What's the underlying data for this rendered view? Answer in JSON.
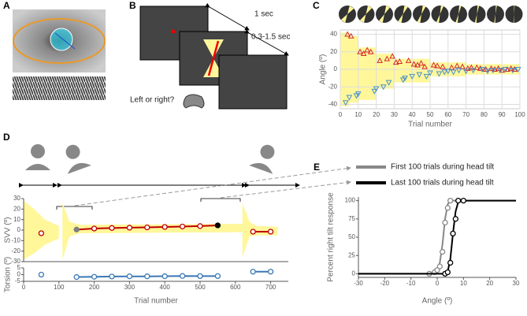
{
  "panel_labels": [
    "A",
    "B",
    "C",
    "D",
    "E"
  ],
  "task": {
    "durations": [
      "1 sec",
      "0.3-1.5 sec"
    ],
    "question": "Left or right?"
  },
  "chart_data": [
    {
      "type": "scatter",
      "x_label": "Trial number",
      "y_label": "Angle (º)",
      "xlim": [
        0,
        100
      ],
      "ylim": [
        -45,
        45
      ],
      "xticks": [
        0,
        10,
        20,
        30,
        40,
        50,
        60,
        70,
        80,
        90,
        100
      ],
      "yticks": [
        -40,
        -20,
        0,
        20,
        40
      ],
      "grid": true,
      "band": {
        "color": "#fff79a",
        "x": [
          0,
          5,
          5,
          10,
          10,
          20,
          20,
          30,
          30,
          50,
          50,
          70,
          70,
          100
        ],
        "upper": [
          42,
          42,
          38,
          38,
          25,
          25,
          18,
          18,
          12,
          12,
          8,
          8,
          6,
          6
        ],
        "lower": [
          -42,
          -42,
          -38,
          -38,
          -35,
          -35,
          -22,
          -22,
          -15,
          -15,
          -8,
          -8,
          -6,
          -6
        ]
      },
      "series": [
        {
          "color": "#d62728",
          "marker": "triangle-up",
          "x": [
            4,
            6,
            11,
            13,
            15,
            17,
            22,
            26,
            29,
            31,
            33,
            38,
            41,
            43,
            45,
            47,
            52,
            54,
            57,
            62,
            65,
            68,
            71,
            73,
            76,
            78,
            81,
            84,
            86,
            88,
            90,
            93,
            95,
            97
          ],
          "values": [
            40,
            38,
            20,
            18,
            22,
            20,
            10,
            12,
            15,
            8,
            9,
            10,
            6,
            5,
            7,
            3,
            5,
            4,
            3,
            2,
            4,
            3,
            1,
            2,
            2,
            1,
            0,
            1,
            0,
            1,
            -1,
            0,
            1,
            0
          ]
        },
        {
          "color": "#4a90c8",
          "marker": "triangle-down",
          "x": [
            3,
            5,
            9,
            10,
            19,
            20,
            24,
            27,
            35,
            36,
            40,
            44,
            48,
            50,
            55,
            58,
            60,
            63,
            66,
            70,
            74,
            79,
            82,
            85,
            89,
            92,
            96,
            99
          ],
          "values": [
            -38,
            -32,
            -30,
            -28,
            -25,
            -22,
            -20,
            -15,
            -12,
            -10,
            -8,
            -6,
            -8,
            -4,
            -5,
            -3,
            -2,
            -3,
            -1,
            -2,
            -1,
            0,
            -2,
            -1,
            -1,
            0,
            -1,
            0
          ]
        }
      ]
    },
    {
      "type": "line",
      "y_label": "SVV (º)",
      "xlim": [
        0,
        750
      ],
      "ylim": [
        -30,
        30
      ],
      "yticks": [
        -30,
        -20,
        -10,
        0,
        10,
        20,
        30
      ],
      "band": {
        "color": "#fff79a",
        "x": [
          0,
          30,
          60,
          100,
          null,
          110,
          130,
          160,
          620,
          null,
          620,
          640,
          660,
          720
        ],
        "upper": [
          28,
          20,
          10,
          4,
          null,
          26,
          8,
          5,
          6,
          null,
          26,
          8,
          4,
          3
        ],
        "lower": [
          -28,
          -22,
          -14,
          -8,
          null,
          -28,
          -6,
          -3,
          -2,
          null,
          -26,
          -6,
          -5,
          -5
        ]
      },
      "series": [
        {
          "color": "#c00000",
          "x": [
            50,
            100,
            150,
            200,
            250,
            300,
            350,
            400,
            450,
            500,
            550,
            600,
            650,
            700
          ],
          "values": [
            -3,
            null,
            0.5,
            1.5,
            2,
            2.3,
            2.6,
            3,
            3.4,
            3.8,
            4.5,
            null,
            -1.5,
            -1.5
          ],
          "marker_colors": [
            null,
            null,
            "#808080",
            null,
            null,
            null,
            null,
            null,
            null,
            null,
            "#000000",
            null,
            null,
            null
          ]
        }
      ]
    },
    {
      "type": "line",
      "x_label": "Trial number",
      "y_label": "Torsion (º)",
      "xlim": [
        0,
        750
      ],
      "ylim": [
        -5,
        5
      ],
      "xticks": [
        0,
        100,
        200,
        300,
        400,
        500,
        600,
        700
      ],
      "yticks": [
        -5,
        0,
        5
      ],
      "series": [
        {
          "color": "#3c78b4",
          "x": [
            50,
            100,
            150,
            200,
            250,
            300,
            350,
            400,
            450,
            500,
            550,
            600,
            650,
            700
          ],
          "values": [
            0,
            null,
            -1.8,
            -1.6,
            -1.4,
            -1.3,
            -1.3,
            -1.2,
            -1.0,
            -1.1,
            -1.1,
            null,
            2.2,
            2.2
          ]
        }
      ]
    },
    {
      "type": "line",
      "x_label": "Angle (º)",
      "y_label": "Percent right tilt response",
      "xlim": [
        -30,
        30
      ],
      "ylim": [
        -5,
        105
      ],
      "xticks": [
        -30,
        -20,
        -10,
        0,
        10,
        20,
        30
      ],
      "yticks": [
        0,
        25,
        50,
        75,
        100
      ],
      "legend": "top",
      "series": [
        {
          "name": "First 100 trials during head tilt",
          "color": "#888888",
          "x": [
            -30,
            -3,
            -1,
            0,
            1,
            2,
            3,
            4,
            5,
            6,
            30
          ],
          "values": [
            0,
            0,
            1,
            5,
            15,
            40,
            75,
            95,
            100,
            100,
            100
          ],
          "points": {
            "x": [
              -3,
              -1,
              0,
              1,
              2,
              3,
              4,
              5
            ],
            "values": [
              0,
              2,
              5,
              10,
              30,
              70,
              90,
              100
            ]
          }
        },
        {
          "name": "Last 100 trials during head tilt",
          "color": "#000000",
          "x": [
            -30,
            3,
            4,
            5,
            6,
            7,
            8,
            9,
            30
          ],
          "values": [
            0,
            0,
            3,
            20,
            55,
            85,
            98,
            100,
            100
          ],
          "points": {
            "x": [
              3,
              4,
              5,
              6,
              7,
              8,
              10
            ],
            "values": [
              0,
              2,
              15,
              55,
              75,
              100,
              100
            ]
          }
        }
      ]
    }
  ]
}
